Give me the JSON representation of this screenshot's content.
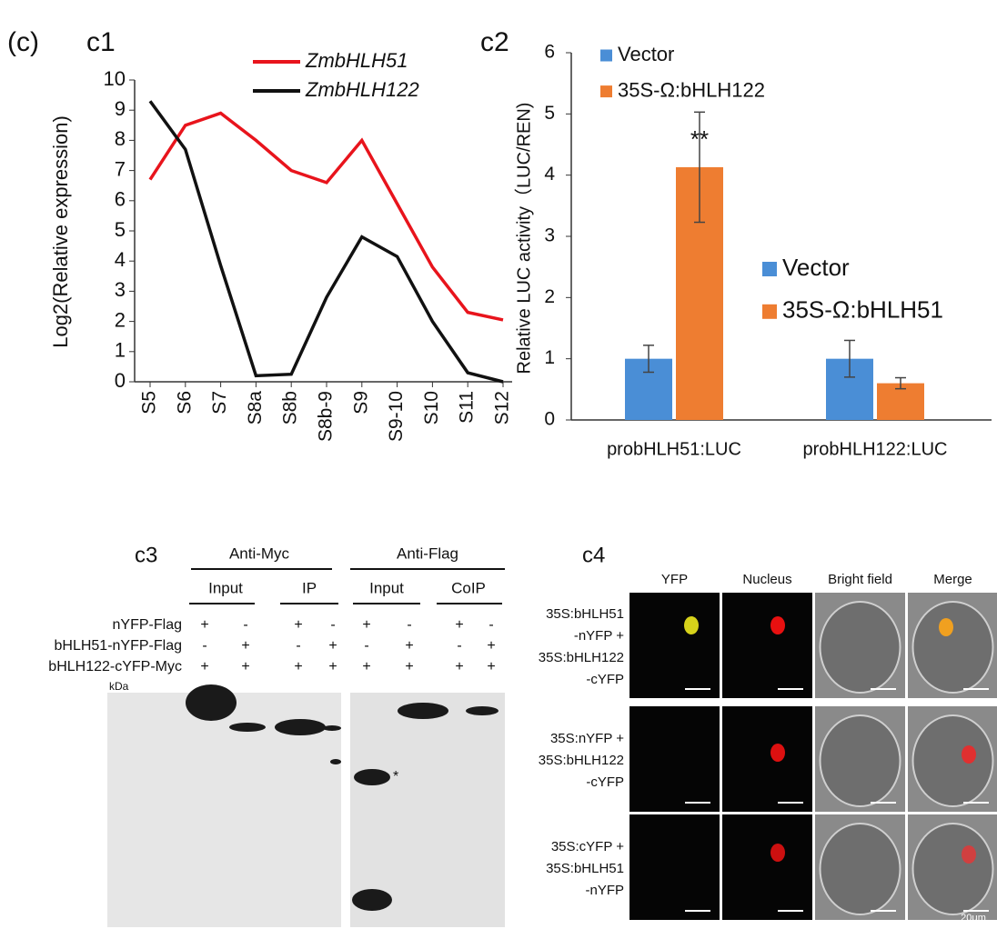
{
  "panel_label": "(c)",
  "chart_data": [
    {
      "type": "line",
      "title": "c1",
      "y_label": "Log2(Relative expression)",
      "categories": [
        "S5",
        "S6",
        "S7",
        "S8a",
        "S8b",
        "S8b-9",
        "S9",
        "S9-10",
        "S10",
        "S11",
        "S12"
      ],
      "series": [
        {
          "name": "ZmbHLH51",
          "color": "#e8141c",
          "values": [
            6.7,
            8.5,
            8.9,
            8.0,
            7.0,
            6.6,
            8.0,
            5.9,
            3.8,
            2.3,
            2.05
          ]
        },
        {
          "name": "ZmbHLH122",
          "color": "#111111",
          "values": [
            9.3,
            7.7,
            3.85,
            0.2,
            0.25,
            2.8,
            4.8,
            4.15,
            2.0,
            0.3,
            0
          ]
        }
      ],
      "ylim": [
        0,
        10
      ],
      "yticks": [
        0,
        1,
        2,
        3,
        4,
        5,
        6,
        7,
        8,
        9,
        10
      ]
    },
    {
      "type": "bar",
      "title": "c2",
      "y_label": "Relative LUC activity（LUC/REN)",
      "categories": [
        "probHLH51:LUC",
        "probHLH122:LUC"
      ],
      "series": [
        {
          "name": "Vector",
          "color": "#4a8ed6",
          "values": [
            1.0,
            1.0
          ],
          "errors": [
            0.22,
            0.3
          ]
        },
        {
          "name": "35S-Ω:bHLH122",
          "color": "#ee7d31",
          "values": [
            4.13,
            null
          ],
          "errors": [
            0.9,
            null
          ]
        },
        {
          "name": "35S-Ω:bHLH51",
          "color": "#ee7d31",
          "values": [
            null,
            0.6
          ],
          "errors": [
            null,
            0.09
          ]
        }
      ],
      "annotation": "**",
      "ylim": [
        0,
        6
      ],
      "yticks": [
        0,
        1,
        2,
        3,
        4,
        5,
        6
      ]
    }
  ],
  "c3": {
    "title": "c3",
    "groups": [
      "Anti-Myc",
      "Anti-Flag"
    ],
    "lanes": [
      "Input",
      "IP",
      "Input",
      "CoIP"
    ],
    "rows": [
      "nYFP-Flag",
      "bHLH51-nYFP-Flag",
      "bHLH122-cYFP-Myc"
    ],
    "signs": [
      [
        "+",
        "-",
        "+",
        "-",
        "+",
        "-",
        "+",
        "-"
      ],
      [
        "-",
        "+",
        "-",
        "+",
        "-",
        "+",
        "-",
        "+"
      ],
      [
        "+",
        "+",
        "+",
        "+",
        "+",
        "+",
        "+",
        "+"
      ]
    ],
    "unit": "kDa",
    "marker": "*"
  },
  "c4": {
    "title": "c4",
    "columns": [
      "YFP",
      "Nucleus",
      "Bright field",
      "Merge"
    ],
    "rows": [
      [
        "35S:bHLH51",
        "-nYFP +",
        "35S:bHLH122",
        "-cYFP"
      ],
      [
        "35S:nYFP +",
        "35S:bHLH122",
        "-cYFP"
      ],
      [
        "35S:cYFP +",
        "35S:bHLH51",
        "-nYFP"
      ]
    ],
    "scale": "20μm"
  }
}
